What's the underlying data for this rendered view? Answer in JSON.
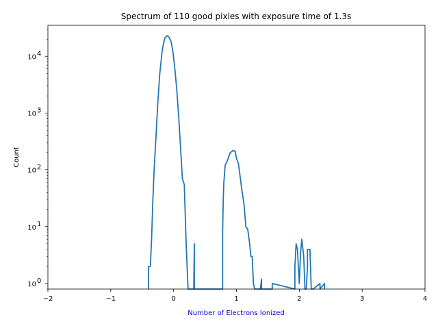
{
  "chart_data": {
    "type": "line",
    "title": "Spectrum of 110 good pixles with exposure time of 1.3s",
    "xlabel": "Number of Electrons Ionized",
    "ylabel": "Count",
    "xlim": [
      -2,
      4
    ],
    "ylim": [
      0.8,
      35000
    ],
    "yscale": "log",
    "grid": false,
    "xticks": [
      -2,
      -1,
      0,
      1,
      2,
      3,
      4
    ],
    "xtick_labels": [
      "−2",
      "−1",
      "0",
      "1",
      "2",
      "3",
      "4"
    ],
    "yticks": [
      1,
      10,
      100,
      1000,
      10000
    ],
    "ytick_labels": [
      "10",
      "10",
      "10",
      "10",
      "10"
    ],
    "ytick_exponents": [
      "0",
      "1",
      "2",
      "3",
      "4"
    ],
    "colors": {
      "line": "#1f77b4",
      "xlabel": "#0000cc",
      "axes": "#000000"
    },
    "series": [
      {
        "name": "",
        "x": [
          -0.4,
          -0.4,
          -0.37,
          -0.35,
          -0.33,
          -0.31,
          -0.28,
          -0.25,
          -0.22,
          -0.18,
          -0.14,
          -0.1,
          -0.07,
          -0.04,
          -0.01,
          0.02,
          0.05,
          0.08,
          0.11,
          0.14,
          0.17,
          0.2,
          0.23,
          0.26,
          0.28,
          0.3,
          0.32,
          0.33,
          0.33,
          0.78,
          0.78,
          0.79,
          0.8,
          0.82,
          0.85,
          0.9,
          0.95,
          0.98,
          1.0,
          1.03,
          1.05,
          1.08,
          1.12,
          1.15,
          1.18,
          1.21,
          1.23,
          1.25,
          1.27,
          1.29,
          1.32,
          1.35,
          1.38,
          1.4,
          1.4,
          1.57,
          1.57,
          1.57,
          1.93,
          1.93,
          1.95,
          1.97,
          2.0,
          2.02,
          2.04,
          2.07,
          2.09,
          2.11,
          2.13,
          2.13,
          2.15,
          2.17,
          2.19,
          2.2,
          2.22,
          2.22,
          2.33,
          2.33,
          2.33,
          2.4,
          2.4,
          2.4
        ],
        "y": [
          0.8,
          2,
          2,
          6,
          30,
          100,
          400,
          1600,
          5000,
          13000,
          21000,
          23000,
          21500,
          18000,
          12000,
          6000,
          2600,
          900,
          250,
          70,
          55,
          5,
          0.8,
          0.8,
          0.8,
          0.8,
          0.8,
          5,
          0.8,
          0.8,
          8,
          30,
          60,
          120,
          140,
          200,
          220,
          210,
          160,
          130,
          90,
          50,
          25,
          10,
          9,
          5,
          3,
          3,
          1,
          0.8,
          0.8,
          0.8,
          0.8,
          1.2,
          0.8,
          0.8,
          0.8,
          1,
          0.8,
          2,
          5,
          4,
          1,
          3.5,
          6,
          3,
          0.8,
          0.8,
          2,
          4,
          4,
          4,
          0.8,
          0.8,
          0.8,
          0.8,
          1,
          0.8,
          0.8,
          1,
          0.8,
          0.8
        ]
      }
    ]
  }
}
